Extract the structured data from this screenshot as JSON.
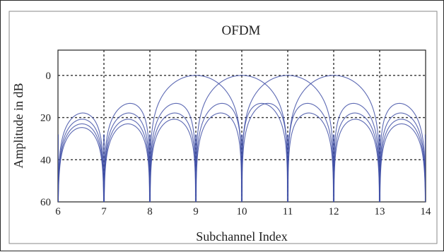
{
  "chart_data": {
    "type": "line",
    "title": "OFDM",
    "xlabel": "Subchannel Index",
    "ylabel": "Amplitude in dB",
    "xlim": [
      6,
      14
    ],
    "ylim": [
      -60,
      12
    ],
    "x_ticks": [
      6,
      7,
      8,
      9,
      10,
      11,
      12,
      13,
      14
    ],
    "y_ticks": [
      0,
      -20,
      -40,
      -60
    ],
    "y_tick_labels": [
      "0",
      "20",
      "40",
      "60"
    ],
    "grid": "dotted at ticks",
    "line_color": "#3f4fa6",
    "description_series": [
      {
        "center": 7.5,
        "peak": -13.2
      },
      {
        "center": 8.5,
        "peak": -3.9
      },
      {
        "center": 9.5,
        "peak": -3.9
      },
      {
        "center": 10.5,
        "peak": -13.2
      },
      {
        "center": 11.5,
        "peak": -3.9
      },
      {
        "center": 12.5,
        "peak": -3.9
      },
      {
        "center": 13.5,
        "peak": -13.2
      }
    ],
    "subcarrier_centers": [
      9,
      10,
      11,
      12
    ],
    "lobe_peaks_db": [
      -13.2,
      -17.8,
      -20.8,
      -23.0
    ]
  }
}
